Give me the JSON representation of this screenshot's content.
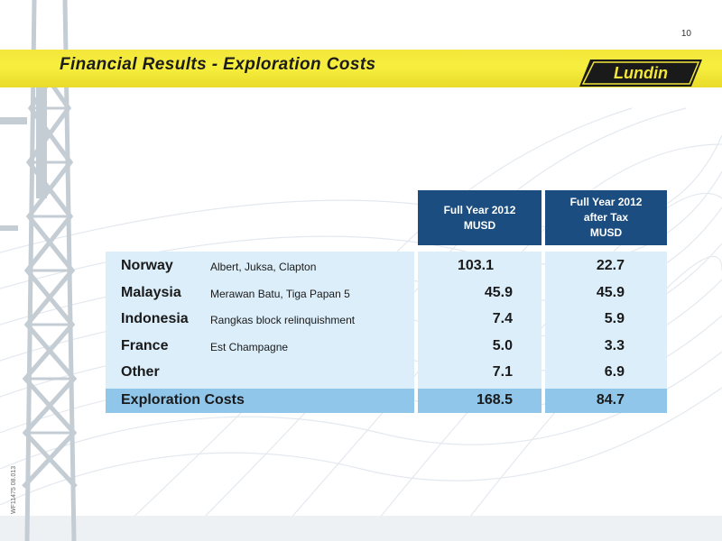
{
  "page_number": "10",
  "title": "Financial Results - Exploration Costs",
  "logo_text": "Lundin",
  "side_code": "WF11475 08.013",
  "colors": {
    "title_bar": "#f2e63a",
    "header": "#1b4d80",
    "row_fill": "#dbeefa",
    "total_fill": "#8fc6ea"
  },
  "table": {
    "headers": [
      {
        "lines": [
          "Full Year 2012",
          "MUSD"
        ]
      },
      {
        "lines": [
          "Full Year 2012",
          "after Tax",
          "MUSD"
        ]
      }
    ],
    "rows": [
      {
        "country": "Norway",
        "fields": "Albert, Juksa, Clapton",
        "full_year": "103.1",
        "after_tax": "22.7"
      },
      {
        "country": "Malaysia",
        "fields": "Merawan Batu, Tiga Papan 5",
        "full_year": "45.9",
        "after_tax": "45.9"
      },
      {
        "country": "Indonesia",
        "fields": "Rangkas block relinquishment",
        "full_year": "7.4",
        "after_tax": "5.9"
      },
      {
        "country": "France",
        "fields": "Est Champagne",
        "full_year": "5.0",
        "after_tax": "3.3"
      },
      {
        "country": "Other",
        "fields": "",
        "full_year": "7.1",
        "after_tax": "6.9"
      }
    ],
    "total": {
      "label": "Exploration Costs",
      "full_year": "168.5",
      "after_tax": "84.7"
    }
  }
}
